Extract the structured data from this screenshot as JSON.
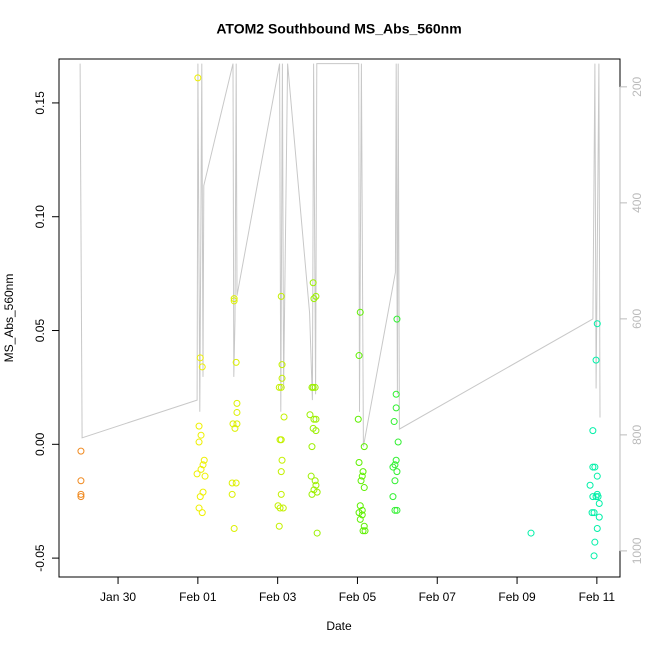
{
  "chart_data": {
    "type": "scatter",
    "title": "ATOM2 Southbound MS_Abs_560nm",
    "xlabel": "Date",
    "ylabel": "MS_Abs_560nm",
    "xlim": [
      28.52,
      42.58
    ],
    "ylim": [
      -0.0583,
      0.1693
    ],
    "y2lim": [
      1045,
      152
    ],
    "xticks": [
      {
        "value": 30,
        "label": "Jan 30"
      },
      {
        "value": 32,
        "label": "Feb 01"
      },
      {
        "value": 34,
        "label": "Feb 03"
      },
      {
        "value": 36,
        "label": "Feb 05"
      },
      {
        "value": 38,
        "label": "Feb 07"
      },
      {
        "value": 40,
        "label": "Feb 09"
      },
      {
        "value": 42,
        "label": "Feb 11"
      }
    ],
    "yticks": [
      -0.05,
      {
        "value": 0,
        "label": "0.00"
      },
      0.05,
      {
        "value": 0.1,
        "label": "0.10"
      },
      0.15
    ],
    "y2ticks": [
      200,
      400,
      600,
      800,
      1000
    ],
    "grid": false,
    "series": [
      {
        "kind": "line",
        "axis": "y2",
        "color": "#c8c8c8",
        "x": [
          29.05,
          29.1,
          31.98,
          32.0,
          32.05,
          32.1,
          32.13,
          32.15,
          32.88,
          32.9,
          32.93,
          32.96,
          32.98,
          34.05,
          34.08,
          34.12,
          34.15,
          34.25,
          34.8,
          34.87,
          34.9,
          34.95,
          34.98,
          36.03,
          36.05,
          36.1,
          36.15,
          36.95,
          36.97,
          37.0,
          37.02,
          37.05,
          41.9,
          41.95,
          41.98,
          42.05,
          42.08
        ],
        "values": [
          160,
          805,
          740,
          160,
          760,
          160,
          700,
          370,
          160,
          700,
          600,
          160,
          560,
          160,
          760,
          160,
          720,
          160,
          590,
          740,
          160,
          730,
          160,
          160,
          760,
          160,
          820,
          520,
          160,
          730,
          160,
          790,
          600,
          160,
          720,
          160,
          770
        ]
      },
      {
        "kind": "points",
        "color": "#f08a20",
        "x": [
          29.07,
          29.07,
          29.07,
          29.07
        ],
        "values": [
          -0.003,
          -0.016,
          -0.022,
          -0.023
        ]
      },
      {
        "kind": "points",
        "color": "#eef000",
        "x": [
          32.0,
          32.06,
          32.11,
          32.03,
          32.08,
          32.03,
          32.16,
          32.13,
          32.08,
          31.98,
          32.18,
          32.06,
          32.13,
          32.03,
          32.11
        ],
        "values": [
          0.161,
          0.038,
          0.034,
          0.008,
          0.004,
          0.001,
          -0.007,
          -0.009,
          -0.011,
          -0.013,
          -0.014,
          -0.023,
          -0.021,
          -0.028,
          -0.03
        ]
      },
      {
        "kind": "points",
        "color": "#dcf000",
        "x": [
          32.91,
          32.91,
          32.96,
          32.98,
          32.98,
          32.88,
          32.98,
          32.93,
          32.86,
          32.96,
          32.86,
          32.91
        ],
        "values": [
          0.064,
          0.063,
          0.036,
          0.018,
          0.014,
          0.009,
          0.009,
          0.007,
          -0.017,
          -0.017,
          -0.022,
          -0.037
        ]
      },
      {
        "kind": "points",
        "color": "#c4f000",
        "x": [
          34.09,
          34.11,
          34.11,
          34.04,
          34.09,
          34.16,
          34.06,
          34.09,
          34.11,
          34.09,
          34.09,
          34.01,
          34.06,
          34.14,
          34.04
        ],
        "values": [
          0.065,
          0.035,
          0.029,
          0.025,
          0.025,
          0.012,
          0.002,
          0.002,
          -0.007,
          -0.012,
          -0.022,
          -0.027,
          -0.028,
          -0.028,
          -0.036
        ]
      },
      {
        "kind": "points",
        "color": "#9cf000",
        "x": [
          34.89,
          34.96,
          34.91,
          34.86,
          34.89,
          34.94,
          34.81,
          34.91,
          34.96,
          34.89,
          34.96,
          34.86,
          34.84,
          34.94,
          34.96,
          34.91,
          34.86,
          34.99,
          34.99
        ],
        "values": [
          0.071,
          0.065,
          0.064,
          0.025,
          0.025,
          0.025,
          0.013,
          0.011,
          0.011,
          0.007,
          0.006,
          -0.001,
          -0.014,
          -0.016,
          -0.018,
          -0.02,
          -0.022,
          -0.021,
          -0.039
        ]
      },
      {
        "kind": "points",
        "color": "#5ef000",
        "x": [
          36.07,
          36.04,
          36.02,
          36.17,
          36.04,
          36.14,
          36.12,
          36.09,
          36.17,
          36.07,
          36.12,
          36.04,
          36.12,
          36.07,
          36.17,
          36.19,
          36.14
        ],
        "values": [
          0.058,
          0.039,
          0.011,
          -0.001,
          -0.008,
          -0.012,
          -0.014,
          -0.016,
          -0.019,
          -0.027,
          -0.029,
          -0.03,
          -0.031,
          -0.033,
          -0.036,
          -0.038,
          -0.038
        ]
      },
      {
        "kind": "points",
        "color": "#30f030",
        "x": [
          36.99,
          36.97,
          36.97,
          36.92,
          37.02,
          36.97,
          36.94,
          36.89,
          36.99,
          36.94,
          36.89,
          36.99,
          36.94
        ],
        "values": [
          0.055,
          0.022,
          0.016,
          0.01,
          0.001,
          -0.007,
          -0.009,
          -0.01,
          -0.012,
          -0.016,
          -0.023,
          -0.029,
          -0.029
        ]
      },
      {
        "kind": "points",
        "color": "#00f0a8",
        "x": [
          40.35,
          42.01,
          41.98,
          41.9,
          41.95,
          41.9,
          42.01,
          41.83,
          42.01,
          41.9,
          42.03,
          41.98,
          42.06,
          41.88,
          41.93,
          42.06,
          42.01,
          41.95,
          41.93
        ],
        "values": [
          -0.039,
          0.053,
          0.037,
          0.006,
          -0.01,
          -0.01,
          -0.014,
          -0.018,
          -0.022,
          -0.023,
          -0.023,
          -0.023,
          -0.026,
          -0.03,
          -0.03,
          -0.032,
          -0.037,
          -0.043,
          -0.049
        ]
      }
    ]
  }
}
